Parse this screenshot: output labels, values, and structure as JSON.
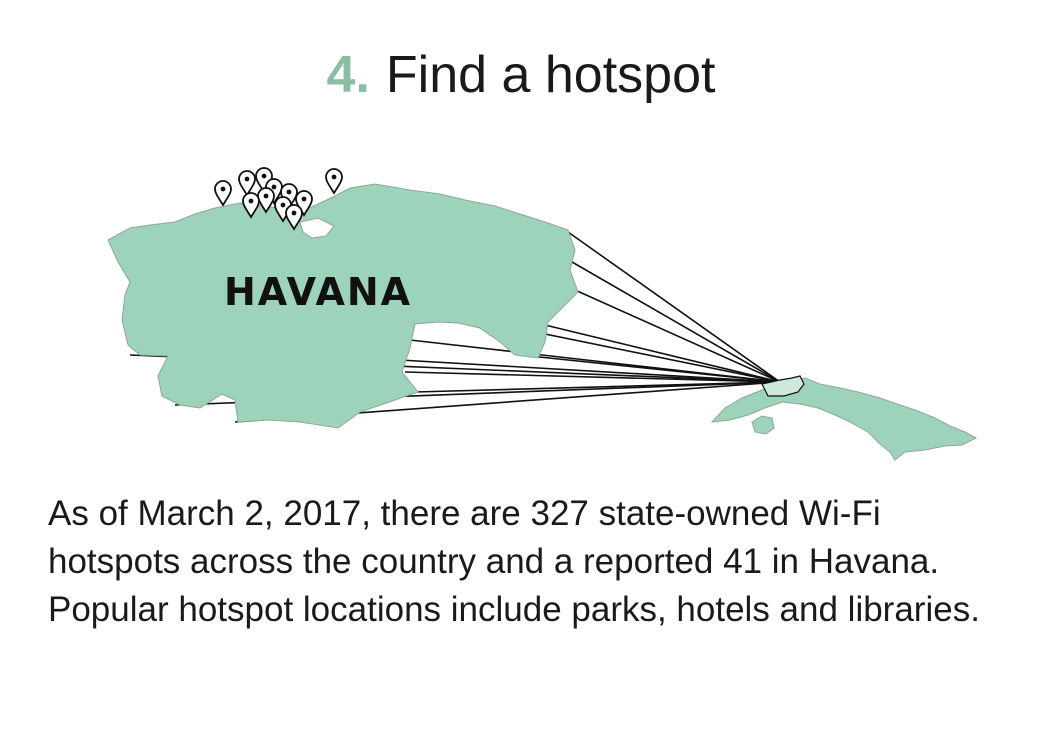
{
  "title": {
    "step_number": "4.",
    "text": "Find a hotspot"
  },
  "map": {
    "city_label": "HAVANA",
    "land_color": "#9dd3bb",
    "coast_color": "#8f9f98",
    "pin_count": 13
  },
  "description": "As of March 2, 2017, there are 327 state-owned Wi-Fi hotspots across the country and a reported 41 in Havana. Popular hotspot locations include parks, hotels and libraries.",
  "colors": {
    "accent": "#8cbda3",
    "text": "#1a1a1a"
  }
}
